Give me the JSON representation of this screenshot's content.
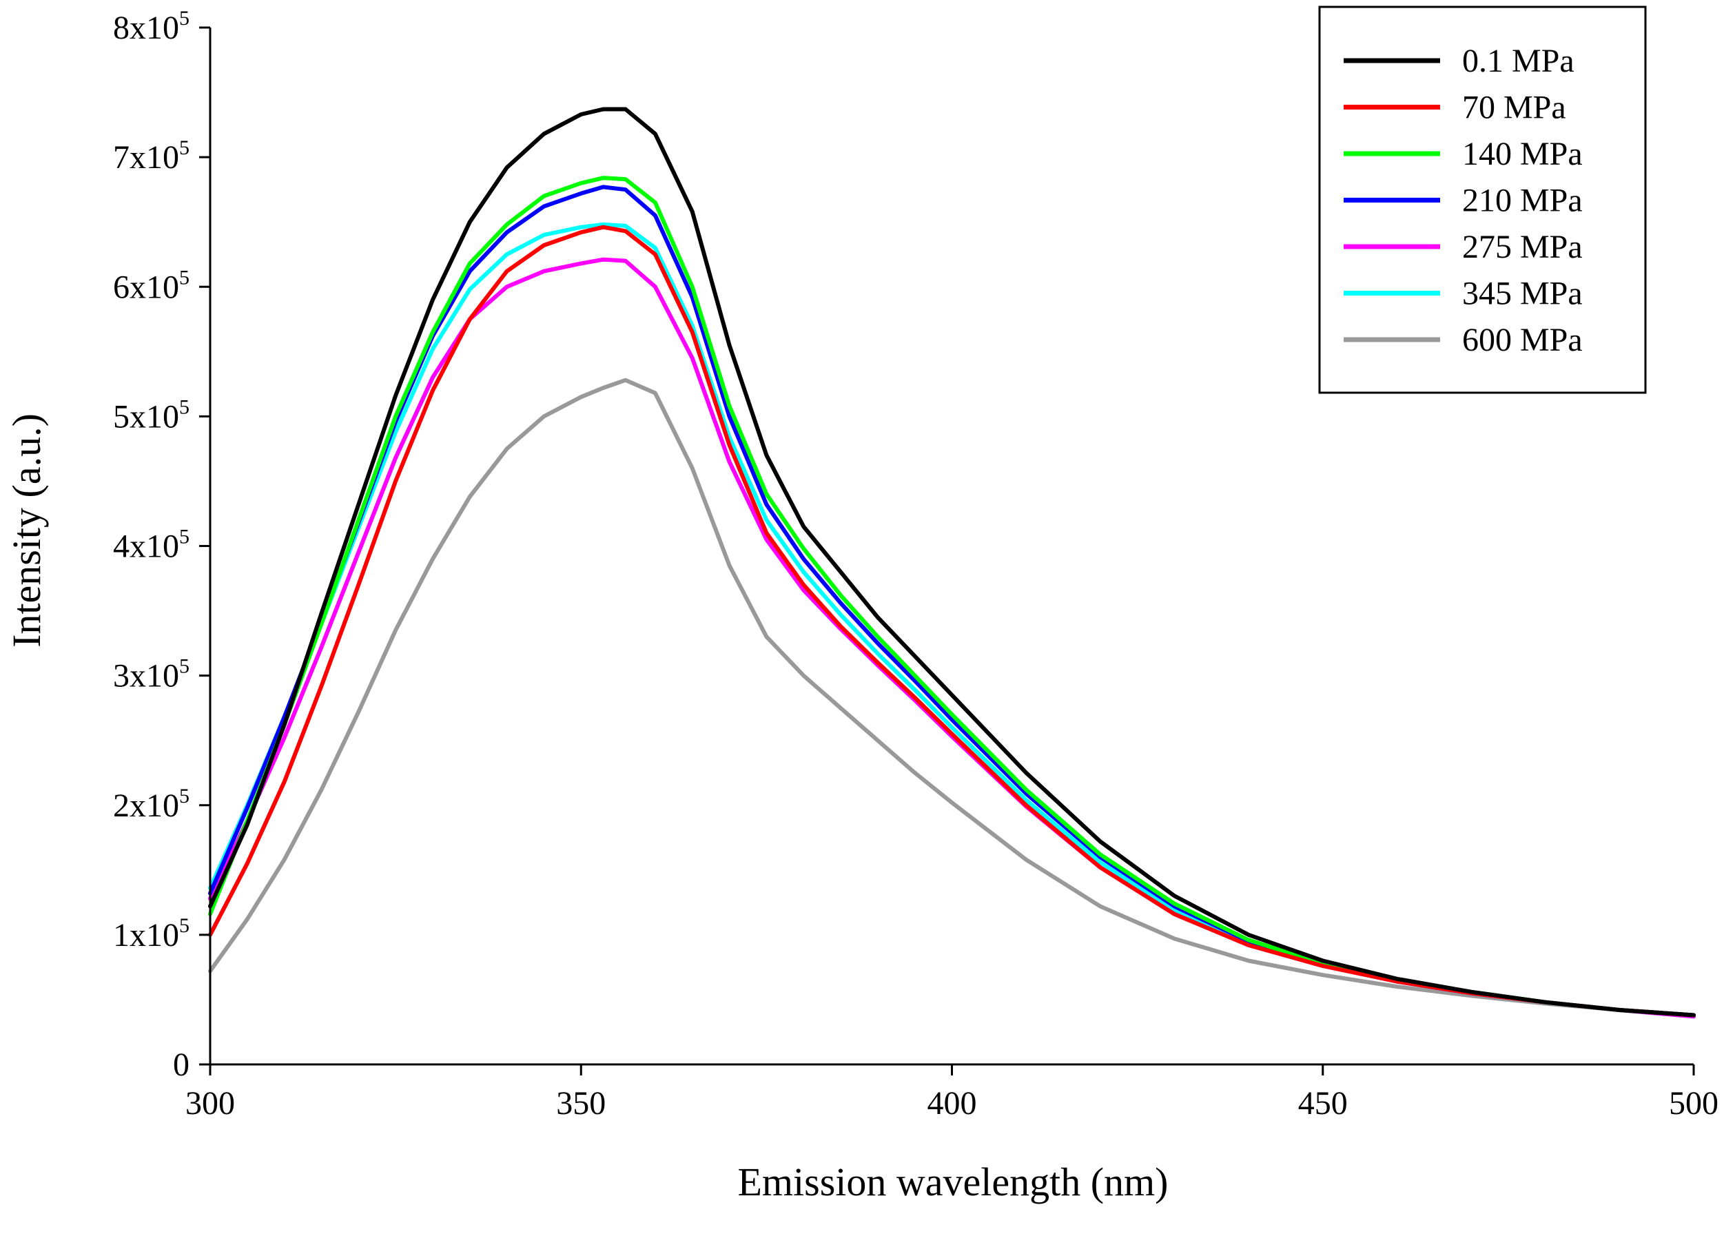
{
  "chart_data": {
    "type": "line",
    "title": "",
    "xlabel": "Emission wavelength (nm)",
    "ylabel": "Intensity (a.u.)",
    "xlim": [
      300,
      500
    ],
    "ylim": [
      0,
      800000
    ],
    "x_ticks": [
      300,
      350,
      400,
      450,
      500
    ],
    "x_tick_labels": [
      "300",
      "350",
      "400",
      "450",
      "500"
    ],
    "y_ticks": [
      0,
      100000,
      200000,
      300000,
      400000,
      500000,
      600000,
      700000,
      800000
    ],
    "y_tick_labels": [
      {
        "base": "0",
        "exp": ""
      },
      {
        "base": "1x10",
        "exp": "5"
      },
      {
        "base": "2x10",
        "exp": "5"
      },
      {
        "base": "3x10",
        "exp": "5"
      },
      {
        "base": "4x10",
        "exp": "5"
      },
      {
        "base": "5x10",
        "exp": "5"
      },
      {
        "base": "6x10",
        "exp": "5"
      },
      {
        "base": "7x10",
        "exp": "5"
      },
      {
        "base": "8x10",
        "exp": "5"
      }
    ],
    "grid": false,
    "legend_position": "top-right",
    "x": [
      300,
      305,
      310,
      315,
      320,
      325,
      330,
      335,
      340,
      345,
      350,
      353,
      356,
      360,
      365,
      370,
      375,
      380,
      385,
      390,
      395,
      400,
      410,
      420,
      430,
      440,
      450,
      460,
      470,
      480,
      490,
      500
    ],
    "series": [
      {
        "name": "0.1 MPa",
        "color": "#000000",
        "values": [
          122000,
          185000,
          262000,
          348000,
          432000,
          516000,
          590000,
          650000,
          692000,
          718000,
          733000,
          737000,
          737000,
          718000,
          658000,
          555000,
          470000,
          415000,
          380000,
          345000,
          315000,
          285000,
          225000,
          172000,
          130000,
          100000,
          80000,
          66000,
          56000,
          48000,
          42000,
          38000
        ]
      },
      {
        "name": "70 MPa",
        "color": "#ff0000",
        "values": [
          100000,
          155000,
          218000,
          292000,
          370000,
          450000,
          520000,
          575000,
          612000,
          632000,
          642000,
          646000,
          643000,
          625000,
          565000,
          478000,
          410000,
          370000,
          338000,
          310000,
          283000,
          255000,
          200000,
          152000,
          116000,
          92000,
          76000,
          64000,
          55000,
          48000,
          42000,
          38000
        ]
      },
      {
        "name": "140 MPa",
        "color": "#00ff00",
        "values": [
          116000,
          188000,
          262000,
          340000,
          420000,
          500000,
          565000,
          618000,
          648000,
          670000,
          680000,
          684000,
          683000,
          665000,
          600000,
          508000,
          440000,
          398000,
          362000,
          330000,
          300000,
          270000,
          212000,
          162000,
          124000,
          96000,
          78000,
          65000,
          56000,
          48000,
          42000,
          38000
        ]
      },
      {
        "name": "210 MPa",
        "color": "#0000ff",
        "values": [
          132000,
          198000,
          268000,
          342000,
          418000,
          496000,
          562000,
          612000,
          642000,
          662000,
          672000,
          677000,
          675000,
          655000,
          592000,
          500000,
          432000,
          390000,
          356000,
          325000,
          296000,
          266000,
          209000,
          160000,
          122000,
          95000,
          77000,
          64000,
          55000,
          48000,
          42000,
          38000
        ]
      },
      {
        "name": "275 MPa",
        "color": "#ff00ff",
        "values": [
          128000,
          188000,
          252000,
          322000,
          395000,
          468000,
          530000,
          575000,
          600000,
          612000,
          618000,
          621000,
          620000,
          600000,
          545000,
          465000,
          405000,
          366000,
          336000,
          308000,
          281000,
          253000,
          199000,
          152000,
          116000,
          92000,
          76000,
          64000,
          55000,
          48000,
          42000,
          37000
        ]
      },
      {
        "name": "345 MPa",
        "color": "#00ffff",
        "values": [
          136000,
          200000,
          268000,
          340000,
          414000,
          488000,
          552000,
          598000,
          625000,
          640000,
          646000,
          648000,
          647000,
          630000,
          570000,
          484000,
          420000,
          380000,
          347000,
          317000,
          289000,
          260000,
          204000,
          156000,
          119000,
          93000,
          76000,
          64000,
          55000,
          48000,
          42000,
          37000
        ]
      },
      {
        "name": "600 MPa",
        "color": "#999999",
        "values": [
          72000,
          112000,
          158000,
          212000,
          272000,
          335000,
          390000,
          438000,
          475000,
          500000,
          515000,
          522000,
          528000,
          518000,
          460000,
          385000,
          330000,
          300000,
          275000,
          250000,
          225000,
          202000,
          158000,
          122000,
          97000,
          80000,
          69000,
          60000,
          53000,
          47000,
          42000,
          38000
        ]
      }
    ]
  }
}
